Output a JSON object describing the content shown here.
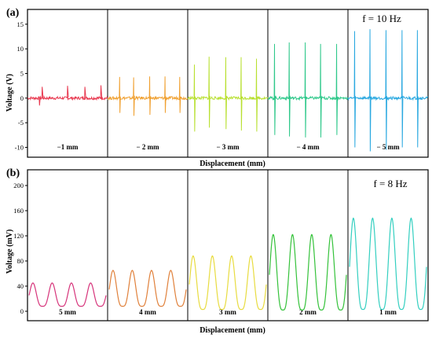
{
  "chart_data": [
    {
      "type": "line",
      "panel_label": "(a)",
      "annotation": "f = 10 Hz",
      "ylabel": "Voltage (V)",
      "xlabel": "Displacement (mm)",
      "ylim": [
        -12,
        18
      ],
      "yticks": [
        "15",
        "10",
        "5",
        "0",
        "-5",
        "-10"
      ],
      "segment_labels": [
        "−1 mm",
        "− 2 mm",
        "− 3 mm",
        "− 4 mm",
        "− 5 mm"
      ],
      "series": [
        {
          "color": "#e8384f",
          "peaks": [
            {
              "pos": 2.2,
              "v": 2.3
            },
            {
              "pos": 1.8,
              "v": -1.5
            },
            {
              "pos": 6.0,
              "v": 2.5
            },
            {
              "pos": 8.6,
              "v": 2.3
            },
            {
              "pos": 11.0,
              "v": 2.6
            },
            {
              "pos": 13.3,
              "v": 2.4
            }
          ]
        },
        {
          "color": "#f0a030",
          "peaks": [
            {
              "pos": 1.8,
              "v": 4.3
            },
            {
              "pos": 1.8,
              "v": -3.0
            },
            {
              "pos": 3.9,
              "v": 4.2
            },
            {
              "pos": 3.9,
              "v": -3.6
            },
            {
              "pos": 6.3,
              "v": 4.4
            },
            {
              "pos": 6.3,
              "v": -3.4
            },
            {
              "pos": 8.6,
              "v": 4.4
            },
            {
              "pos": 8.6,
              "v": -3.0
            },
            {
              "pos": 10.8,
              "v": 4.3
            },
            {
              "pos": 10.8,
              "v": -3.0
            }
          ]
        },
        {
          "color": "#b8e030",
          "peaks": [
            {
              "pos": 1.0,
              "v": 6.8
            },
            {
              "pos": 1.0,
              "v": -6.8
            },
            {
              "pos": 3.2,
              "v": 8.4
            },
            {
              "pos": 3.2,
              "v": -6.0
            },
            {
              "pos": 5.7,
              "v": 8.3
            },
            {
              "pos": 5.7,
              "v": -6.3
            },
            {
              "pos": 8.0,
              "v": 8.3
            },
            {
              "pos": 8.0,
              "v": -6.6
            },
            {
              "pos": 10.3,
              "v": 8.0
            },
            {
              "pos": 10.3,
              "v": -6.8
            }
          ]
        },
        {
          "color": "#2ec88a",
          "peaks": [
            {
              "pos": 1.0,
              "v": 11.0
            },
            {
              "pos": 1.0,
              "v": -7.5
            },
            {
              "pos": 3.2,
              "v": 11.3
            },
            {
              "pos": 3.2,
              "v": -7.8
            },
            {
              "pos": 5.6,
              "v": 11.3
            },
            {
              "pos": 5.6,
              "v": -8.0
            },
            {
              "pos": 7.9,
              "v": 11.0
            },
            {
              "pos": 7.9,
              "v": -8.0
            },
            {
              "pos": 10.3,
              "v": 11.0
            },
            {
              "pos": 10.3,
              "v": -7.5
            }
          ]
        },
        {
          "color": "#29a8e0",
          "peaks": [
            {
              "pos": 1.0,
              "v": 13.6
            },
            {
              "pos": 1.0,
              "v": -10.0
            },
            {
              "pos": 3.3,
              "v": 14.0
            },
            {
              "pos": 3.3,
              "v": -10.8
            },
            {
              "pos": 5.7,
              "v": 13.8
            },
            {
              "pos": 5.7,
              "v": -10.5
            },
            {
              "pos": 8.1,
              "v": 13.8
            },
            {
              "pos": 8.1,
              "v": -10.0
            },
            {
              "pos": 10.4,
              "v": 13.8
            },
            {
              "pos": 10.4,
              "v": -10.0
            }
          ]
        }
      ]
    },
    {
      "type": "line",
      "panel_label": "(b)",
      "annotation": "f = 8 Hz",
      "ylabel": "Voltage (mV)",
      "xlabel": "Displacement (mm)",
      "ylim": [
        -15,
        225
      ],
      "yticks": [
        "200",
        "160",
        "120",
        "80",
        "40",
        "0"
      ],
      "segment_labels": [
        "5 mm",
        "4 mm",
        "3 mm",
        "2 mm",
        "1 mm"
      ],
      "series": [
        {
          "color": "#d6337a",
          "base": 8,
          "amp": 37,
          "periods": 4,
          "phase": 0.3
        },
        {
          "color": "#e0803a",
          "base": 8,
          "amp": 57,
          "periods": 4,
          "phase": 0.3
        },
        {
          "color": "#e8dc40",
          "base": 3,
          "amp": 85,
          "periods": 4,
          "phase": 0.3
        },
        {
          "color": "#34c23a",
          "base": 2,
          "amp": 120,
          "periods": 4,
          "phase": 0.3
        },
        {
          "color": "#33cfc0",
          "base": 3,
          "amp": 145,
          "periods": 4,
          "phase": 0.3
        }
      ]
    }
  ]
}
